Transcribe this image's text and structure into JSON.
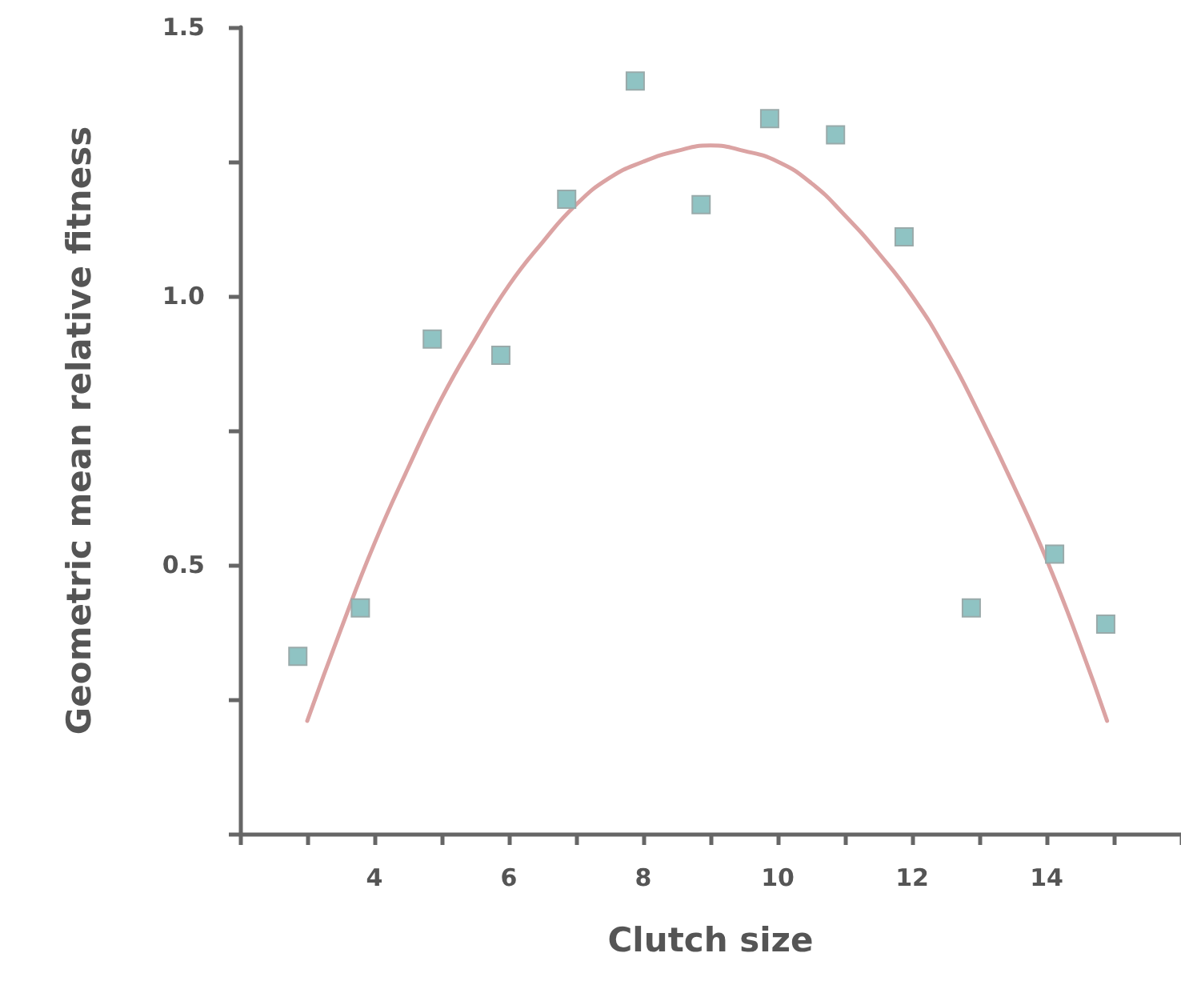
{
  "chart_data": {
    "type": "scatter",
    "xlabel": "Clutch size",
    "ylabel": "Geometric mean relative fitness",
    "xlim": [
      2,
      16
    ],
    "ylim": [
      0,
      1.5
    ],
    "xticks": [
      {
        "value": 2,
        "label": null
      },
      {
        "value": 3,
        "label": null
      },
      4,
      {
        "value": 5,
        "label": null
      },
      6,
      {
        "value": 7,
        "label": null
      },
      8,
      {
        "value": 9,
        "label": null
      },
      10,
      {
        "value": 11,
        "label": null
      },
      12,
      {
        "value": 13,
        "label": null
      },
      14,
      {
        "value": 15,
        "label": null
      },
      {
        "value": 16,
        "label": null
      }
    ],
    "yticks": [
      {
        "value": 0,
        "label": null
      },
      {
        "value": 0.25,
        "label": null
      },
      {
        "value": 0.5,
        "label": "0.5"
      },
      {
        "value": 0.75,
        "label": null
      },
      {
        "value": 1.0,
        "label": "1.0"
      },
      {
        "value": 1.25,
        "label": null
      },
      {
        "value": 1.5,
        "label": "1.5"
      }
    ],
    "grid": false,
    "series": [
      {
        "type": "line",
        "color": "#dba3a3",
        "marker": "none",
        "line_style": "solid",
        "x": [
          3,
          3.5,
          4,
          4.5,
          5,
          5.5,
          6,
          6.5,
          7,
          7.5,
          8,
          8.5,
          9,
          9.5,
          10,
          10.5,
          11,
          11.5,
          12,
          12.5,
          13,
          13.5,
          14,
          14.5,
          14.9
        ],
        "values": [
          0.21,
          0.38,
          0.54,
          0.68,
          0.81,
          0.92,
          1.02,
          1.1,
          1.17,
          1.22,
          1.25,
          1.27,
          1.28,
          1.27,
          1.25,
          1.21,
          1.15,
          1.08,
          1.0,
          0.9,
          0.78,
          0.65,
          0.51,
          0.35,
          0.21
        ]
      },
      {
        "color": "#8fc3c3",
        "marker": "square",
        "x": [
          2.86,
          3.79,
          4.86,
          5.88,
          6.86,
          7.88,
          8.86,
          9.88,
          10.86,
          11.88,
          12.88,
          14.12,
          14.88
        ],
        "values": [
          0.33,
          0.42,
          0.92,
          0.89,
          1.18,
          1.4,
          1.17,
          1.33,
          1.3,
          1.11,
          0.42,
          0.52,
          0.39
        ]
      }
    ]
  }
}
